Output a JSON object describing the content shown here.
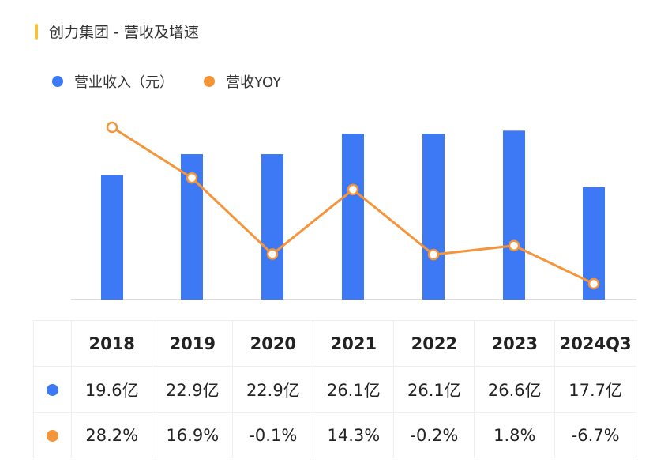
{
  "title": "创力集团 - 营收及增速",
  "legend": {
    "revenue_label": "营业收入（元）",
    "yoy_label": "营收YOY"
  },
  "colors": {
    "bar": "#3d78f5",
    "line": "#f5953a",
    "accent": "#f5c23a"
  },
  "chart_data": {
    "type": "bar",
    "categories": [
      "2018",
      "2019",
      "2020",
      "2021",
      "2022",
      "2023",
      "2024Q3"
    ],
    "series": [
      {
        "name": "营业收入（元）",
        "type": "bar",
        "values": [
          19.6,
          22.9,
          22.9,
          26.1,
          26.1,
          26.6,
          17.7
        ],
        "labels": [
          "19.6亿",
          "22.9亿",
          "22.9亿",
          "26.1亿",
          "26.1亿",
          "26.6亿",
          "17.7亿"
        ]
      },
      {
        "name": "营收YOY",
        "type": "line",
        "values": [
          28.2,
          16.9,
          -0.1,
          14.3,
          -0.2,
          1.8,
          -6.7
        ],
        "labels": [
          "28.2%",
          "16.9%",
          "-0.1%",
          "14.3%",
          "-0.2%",
          "1.8%",
          "-6.7%"
        ]
      }
    ],
    "title": "创力集团 - 营收及增速",
    "legend_position": "top-left",
    "grid": false
  }
}
